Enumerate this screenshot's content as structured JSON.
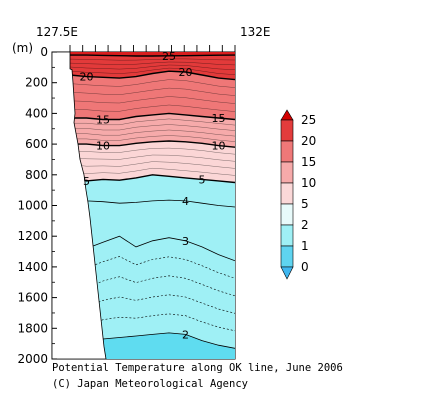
{
  "title": "Potential Temperature along OK line, June 2006",
  "credit": "(C) Japan Meteorological Agency",
  "chart_data": {
    "type": "contour",
    "xlabel": "",
    "ylabel": "(m)",
    "x_top_labels": [
      "127.5E",
      "132E"
    ],
    "xlim": [
      127.5,
      132.0
    ],
    "ylim": [
      2000,
      0
    ],
    "y_ticks": [
      0,
      200,
      400,
      600,
      800,
      1000,
      1200,
      1400,
      1600,
      1800,
      2000
    ],
    "station_count": 14,
    "legend": {
      "placement": "right",
      "levels": [
        0,
        1,
        2,
        5,
        10,
        15,
        20,
        25
      ],
      "colors": [
        "#3fb7f0",
        "#5fd4f0",
        "#9ff0f5",
        "#e8fafa",
        "#fbd8d8",
        "#f6aaaa",
        "#ef7878",
        "#e33c3c",
        "#d20000"
      ]
    },
    "bands": [
      {
        "value_range": "20-25+",
        "color": "#e23a3a"
      },
      {
        "value_range": "15-20",
        "color": "#ef7777"
      },
      {
        "value_range": "10-15",
        "color": "#f6aaaa"
      },
      {
        "value_range": "5-10",
        "color": "#fbd6d6"
      },
      {
        "value_range": "2-5",
        "color": "#9ff0f5"
      },
      {
        "value_range": "1-2",
        "color": "#5fdcf0"
      }
    ],
    "contours": [
      {
        "value": 25,
        "label": "25",
        "depth": [
          20,
          20,
          22,
          24,
          26,
          26,
          25,
          24,
          22,
          21,
          20
        ]
      },
      {
        "value": 20,
        "label": "20",
        "depth": [
          150,
          160,
          165,
          170,
          160,
          140,
          125,
          130,
          150,
          170,
          180
        ]
      },
      {
        "value": 15,
        "label": "15",
        "depth": [
          430,
          430,
          440,
          440,
          420,
          410,
          400,
          410,
          420,
          430,
          440
        ]
      },
      {
        "value": 10,
        "label": "10",
        "depth": [
          600,
          600,
          610,
          610,
          595,
          585,
          580,
          585,
          595,
          610,
          620
        ]
      },
      {
        "value": 5,
        "label": "5",
        "depth": [
          820,
          840,
          830,
          835,
          820,
          800,
          810,
          820,
          830,
          840,
          850
        ]
      },
      {
        "value": 4,
        "label": "4",
        "depth": [
          960,
          970,
          975,
          985,
          980,
          970,
          965,
          970,
          985,
          1000,
          1010
        ]
      },
      {
        "value": 3,
        "label": "3",
        "depth": [
          1330,
          1280,
          1240,
          1200,
          1270,
          1230,
          1210,
          1230,
          1270,
          1320,
          1360
        ]
      },
      {
        "value": 2,
        "label": "2",
        "depth": [
          1990,
          1920,
          1870,
          1860,
          1850,
          1840,
          1830,
          1840,
          1880,
          1910,
          1930
        ]
      }
    ]
  }
}
